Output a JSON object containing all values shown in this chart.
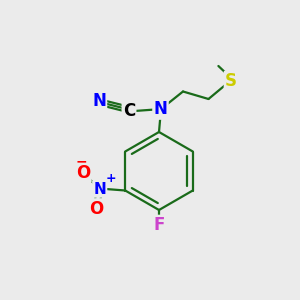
{
  "bg_color": "#ebebeb",
  "atom_colors": {
    "N": "#0000ff",
    "C": "#000000",
    "S": "#cccc00",
    "F": "#cc44cc",
    "O": "#ff0000",
    "bond": "#1a6b1a"
  }
}
